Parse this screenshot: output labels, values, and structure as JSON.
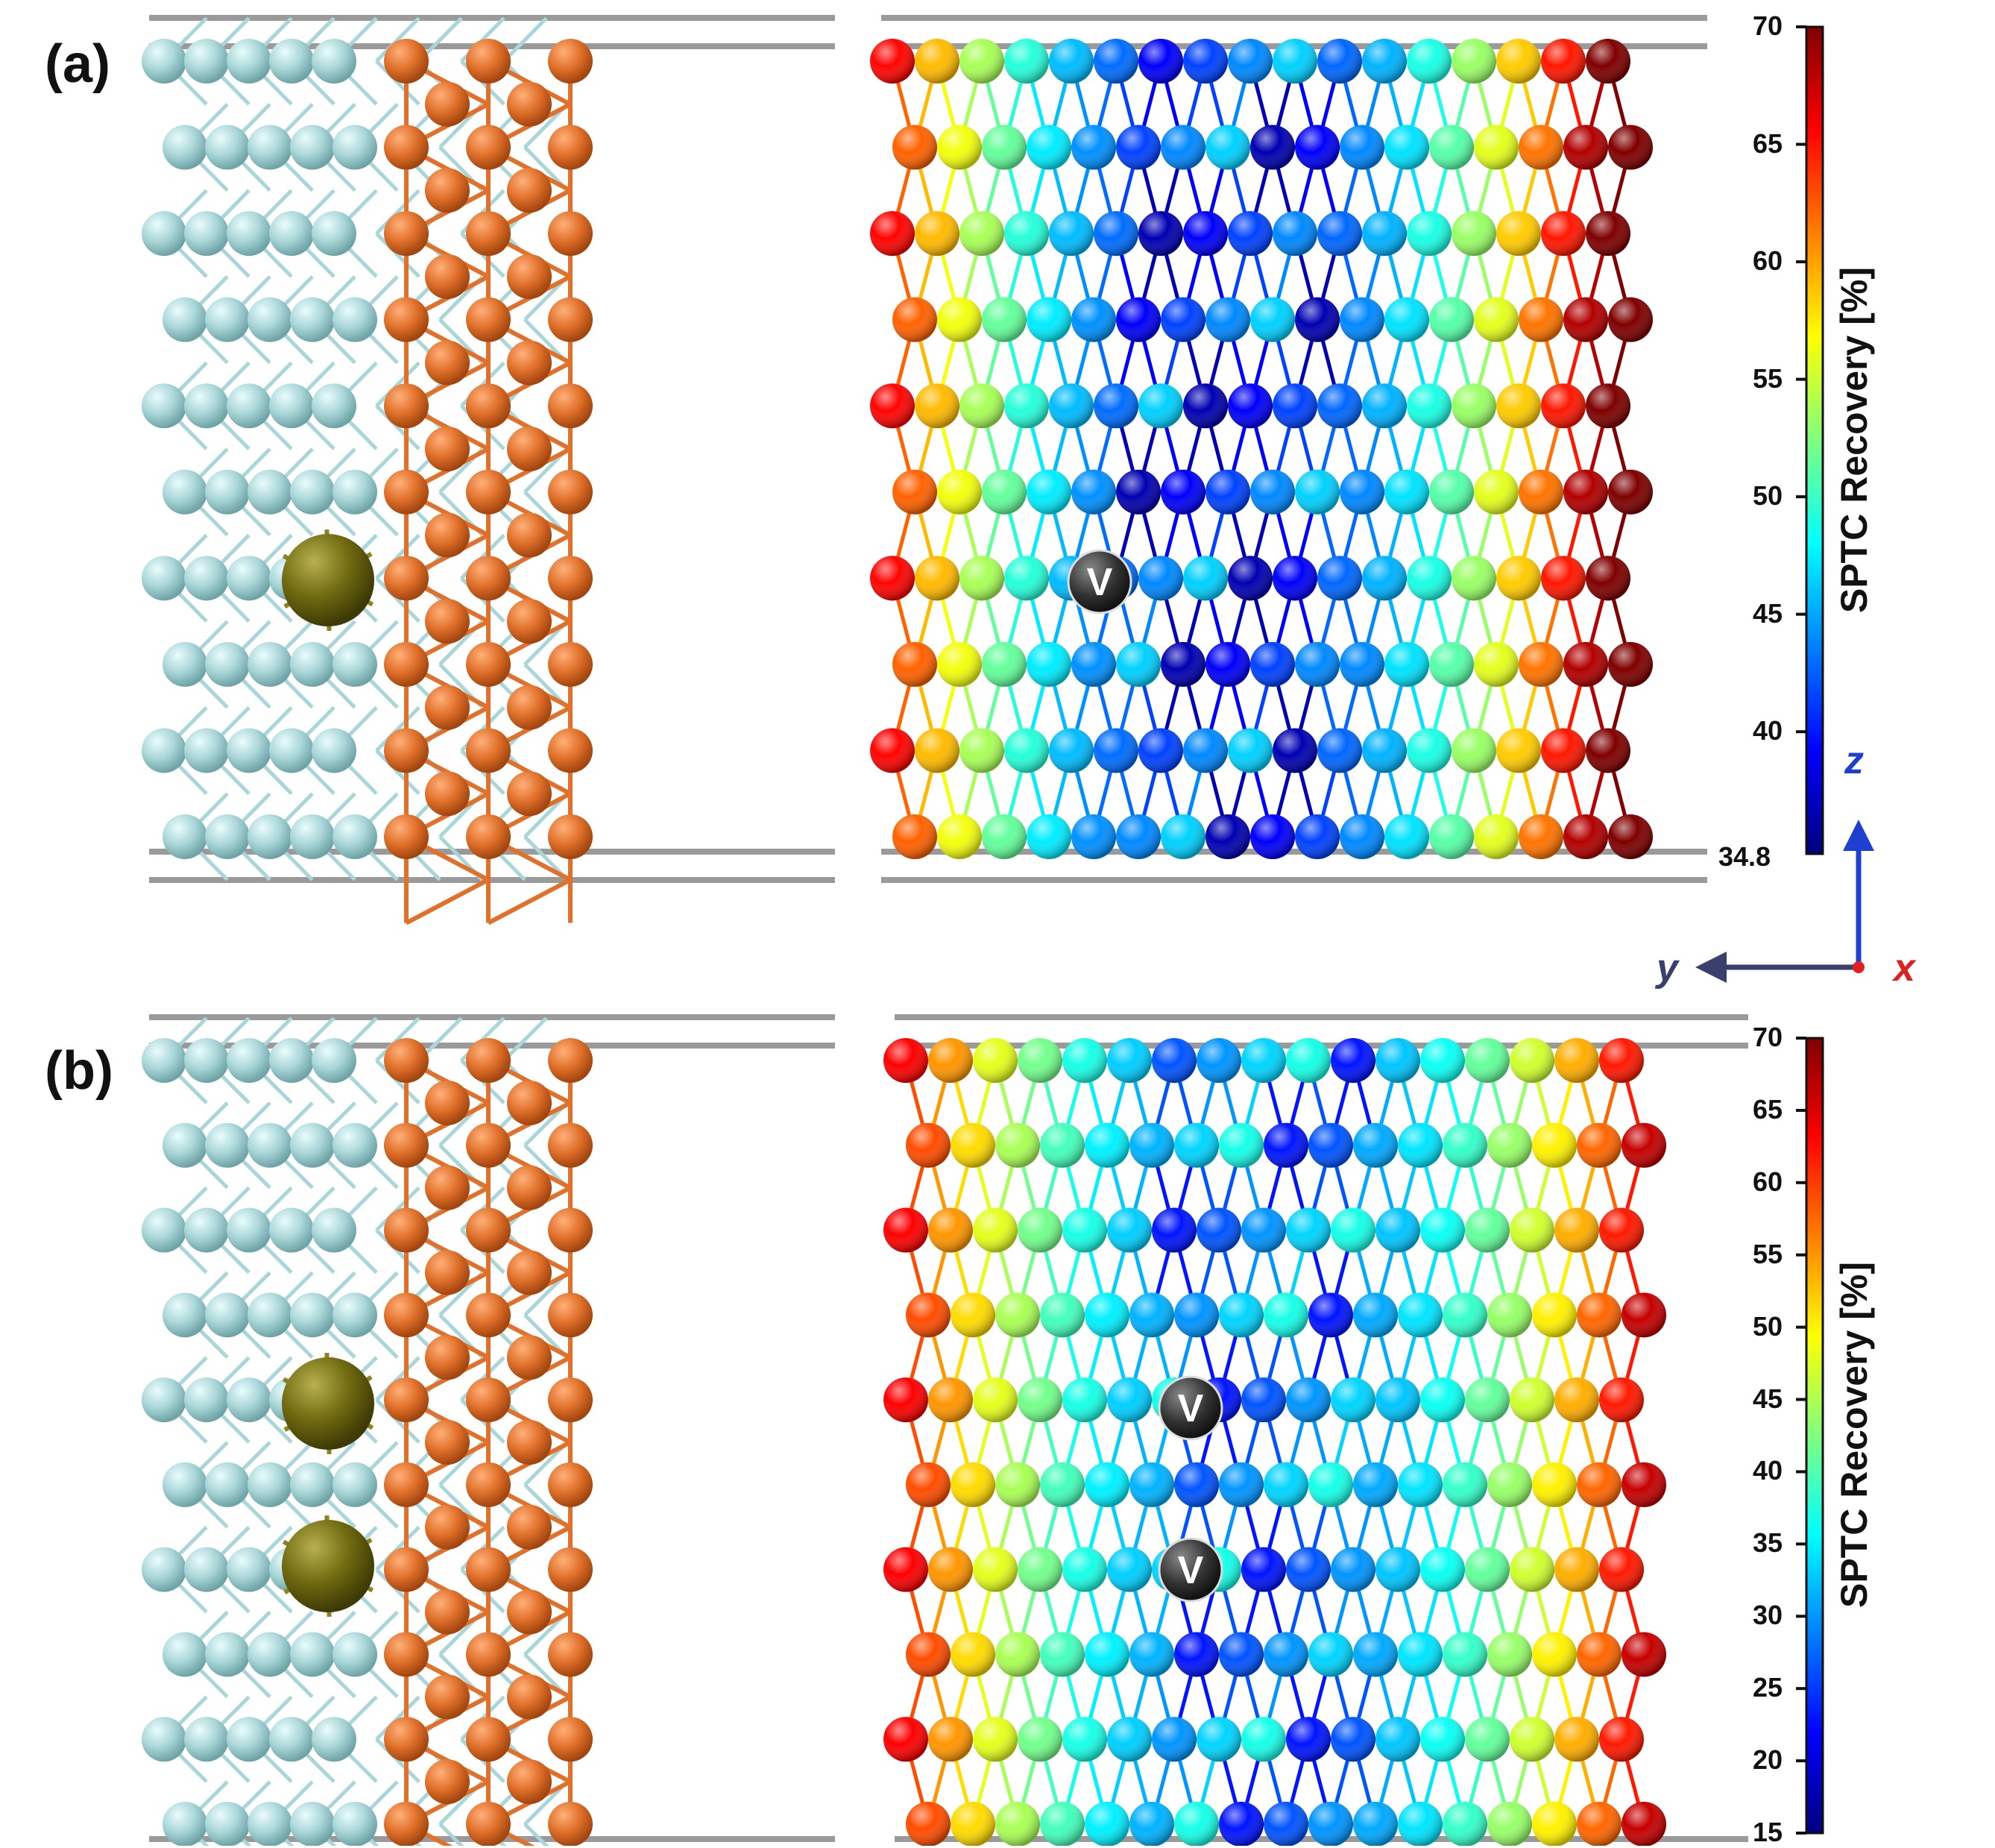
{
  "panels": [
    {
      "label": "(a)",
      "vacancy_count": 1,
      "vacancy_marker": "V",
      "solute_count": 1,
      "colorbar": {
        "title": "SPTC Recovery [%]",
        "min": 34.8,
        "max": 70,
        "ticks": [
          "70",
          "65",
          "60",
          "55",
          "50",
          "45",
          "40"
        ],
        "tick_values": [
          70,
          65,
          60,
          55,
          50,
          45,
          40
        ],
        "min_label": "34.8"
      }
    },
    {
      "label": "(b)",
      "vacancy_count": 2,
      "vacancy_marker": "V",
      "solute_count": 2,
      "colorbar": {
        "title": "SPTC Recovery [%]",
        "min": 15,
        "max": 70,
        "ticks": [
          "70",
          "65",
          "60",
          "55",
          "50",
          "45",
          "40",
          "35",
          "30",
          "25",
          "20",
          "15"
        ],
        "tick_values": [
          70,
          65,
          60,
          55,
          50,
          45,
          40,
          35,
          30,
          25,
          20,
          15
        ]
      }
    }
  ],
  "axes_triad": {
    "z": "z",
    "y": "y",
    "x": "x"
  },
  "colors": {
    "matrix_atom": "#a9d6d8",
    "boundary_atom": "#e0702a",
    "solute_atom": "#6f6a10",
    "cell_border": "#9a9a9a",
    "high_recovery": "#7a0a0a",
    "axis_z": "#1f3fd1",
    "axis_y": "#3b3f6e",
    "axis_x": "#e02020"
  },
  "colormap": [
    "#00007f",
    "#0000ff",
    "#007fff",
    "#00ffff",
    "#7fff7f",
    "#ffff00",
    "#ff7f00",
    "#ff0000",
    "#7f0000"
  ]
}
